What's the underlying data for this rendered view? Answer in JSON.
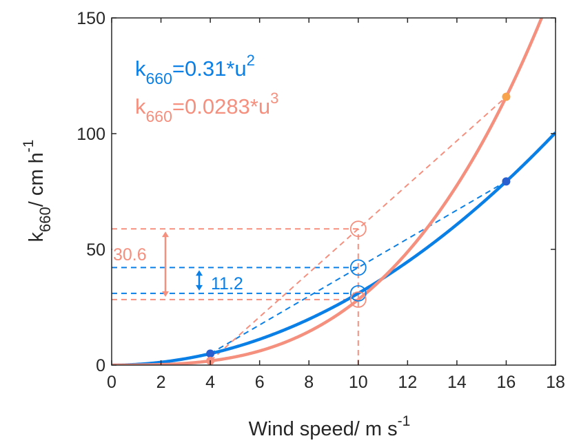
{
  "colors": {
    "blue": "#0A7FE6",
    "salmon": "#F58F7E",
    "blue_marker": "#2A5FD0",
    "salmon_marker": "#F7A24D",
    "axis": "#262626"
  },
  "chart_data": {
    "type": "line",
    "xlabel": {
      "base": "Wind speed/ m s",
      "sup": "-1"
    },
    "ylabel": {
      "k": "k",
      "sub": "660",
      "rest": "/ cm h",
      "sup": "-1"
    },
    "xlim": [
      0,
      18
    ],
    "ylim": [
      0,
      150
    ],
    "xticks": [
      0,
      2,
      4,
      6,
      8,
      10,
      12,
      14,
      16,
      18
    ],
    "yticks": [
      0,
      50,
      100,
      150
    ],
    "grid": false,
    "legend_position": "top-left",
    "series": [
      {
        "key": "blue",
        "name": {
          "k": "k",
          "sub": "660",
          "eq": "=0.31*u",
          "sup": "2"
        },
        "coefficient": 0.31,
        "exponent": 2,
        "points": [
          [
            4,
            4.96
          ],
          [
            16,
            79.36
          ]
        ]
      },
      {
        "key": "salmon",
        "name": {
          "k": "k",
          "sub": "660",
          "eq": "=0.0283*u",
          "sup": "3"
        },
        "coefficient": 0.0283,
        "exponent": 3,
        "points": [
          [
            4,
            1.81
          ],
          [
            16,
            115.92
          ]
        ]
      }
    ],
    "secant_lines": [
      {
        "key": "blue",
        "from": [
          4,
          4.96
        ],
        "to": [
          16,
          79.36
        ],
        "mid": [
          10,
          42.16
        ],
        "curve_at_mid": [
          10,
          31.0
        ]
      },
      {
        "key": "salmon",
        "from": [
          4,
          1.81
        ],
        "to": [
          16,
          115.92
        ],
        "mid": [
          10,
          58.87
        ],
        "curve_at_mid": [
          10,
          28.3
        ]
      }
    ],
    "vertical_reference": {
      "x": 10
    },
    "annotations": [
      {
        "key": "salmon",
        "text": "30.6",
        "from_y": 28.3,
        "to_y": 58.9
      },
      {
        "key": "blue",
        "text": "11.2",
        "from_y": 31.0,
        "to_y": 42.2
      }
    ]
  }
}
